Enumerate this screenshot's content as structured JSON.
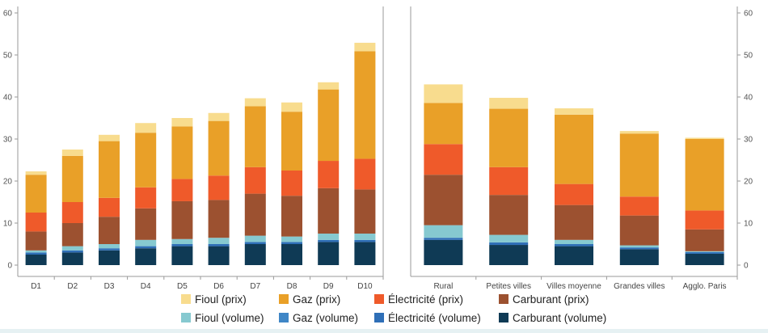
{
  "chart_data": [
    {
      "type": "bar",
      "stacked": true,
      "categories": [
        "D1",
        "D2",
        "D3",
        "D4",
        "D5",
        "D6",
        "D7",
        "D8",
        "D9",
        "D10"
      ],
      "ylim": [
        0,
        60
      ],
      "yticks": [
        0,
        10,
        20,
        30,
        40,
        50,
        60
      ],
      "grid": false,
      "series": [
        {
          "name": "Carburant (volume)",
          "color": "#0f3a55",
          "values": [
            2.5,
            3.0,
            3.5,
            4.0,
            4.5,
            4.5,
            5.0,
            5.0,
            5.5,
            5.5
          ]
        },
        {
          "name": "Électricité (volume)",
          "color": "#2f6fb7",
          "values": [
            0.5,
            0.5,
            0.5,
            0.5,
            0.5,
            0.5,
            0.5,
            0.5,
            0.5,
            0.5
          ]
        },
        {
          "name": "Gaz (volume)",
          "color": "#3f86c6",
          "values": [
            0.0,
            0.0,
            0.0,
            0.0,
            0.0,
            0.0,
            0.0,
            0.0,
            0.0,
            0.0
          ]
        },
        {
          "name": "Fioul (volume)",
          "color": "#86c9d0",
          "values": [
            0.5,
            1.0,
            1.0,
            1.5,
            1.2,
            1.5,
            1.5,
            1.3,
            1.5,
            1.5
          ]
        },
        {
          "name": "Carburant (prix)",
          "color": "#9c5130",
          "values": [
            4.5,
            5.5,
            6.5,
            7.5,
            9.0,
            9.0,
            10.0,
            9.7,
            10.8,
            10.5
          ]
        },
        {
          "name": "Électricité (prix)",
          "color": "#ef5a2a",
          "values": [
            4.5,
            5.0,
            4.5,
            5.0,
            5.3,
            5.8,
            6.3,
            6.0,
            6.5,
            7.3
          ]
        },
        {
          "name": "Gaz (prix)",
          "color": "#e9a028",
          "values": [
            9.0,
            11.0,
            13.5,
            13.0,
            12.5,
            13.0,
            14.5,
            14.0,
            17.0,
            25.6
          ]
        },
        {
          "name": "Fioul (prix)",
          "color": "#f8dc8e",
          "values": [
            0.8,
            1.5,
            1.5,
            2.3,
            2.0,
            1.9,
            1.9,
            2.2,
            1.7,
            2.0
          ]
        }
      ]
    },
    {
      "type": "bar",
      "stacked": true,
      "categories": [
        "Rural",
        "Petites villes",
        "Villes moyenne",
        "Grandes villes",
        "Agglo. Paris"
      ],
      "ylim": [
        0,
        60
      ],
      "yticks": [
        0,
        10,
        20,
        30,
        40,
        50,
        60
      ],
      "grid": false,
      "series": [
        {
          "name": "Carburant (volume)",
          "color": "#0f3a55",
          "values": [
            6.0,
            4.8,
            4.5,
            3.8,
            2.7
          ]
        },
        {
          "name": "Électricité (volume)",
          "color": "#2f6fb7",
          "values": [
            0.5,
            0.6,
            0.5,
            0.4,
            0.4
          ]
        },
        {
          "name": "Gaz (volume)",
          "color": "#3f86c6",
          "values": [
            0.0,
            0.0,
            0.0,
            0.0,
            0.0
          ]
        },
        {
          "name": "Fioul (volume)",
          "color": "#86c9d0",
          "values": [
            3.0,
            1.8,
            1.0,
            0.5,
            0.2
          ]
        },
        {
          "name": "Carburant (prix)",
          "color": "#9c5130",
          "values": [
            12.0,
            9.5,
            8.3,
            7.1,
            5.2
          ]
        },
        {
          "name": "Électricité (prix)",
          "color": "#ef5a2a",
          "values": [
            7.3,
            6.6,
            5.0,
            4.5,
            4.5
          ]
        },
        {
          "name": "Gaz (prix)",
          "color": "#e9a028",
          "values": [
            9.8,
            13.9,
            16.5,
            15.0,
            17.0
          ]
        },
        {
          "name": "Fioul (prix)",
          "color": "#f8dc8e",
          "values": [
            4.4,
            2.6,
            1.5,
            0.6,
            0.3
          ]
        }
      ]
    }
  ],
  "legend": {
    "position": "bottom",
    "rows": [
      [
        "Fioul (prix)",
        "Gaz (prix)",
        "Électricité (prix)",
        "Carburant (prix)"
      ],
      [
        "Fioul (volume)",
        "Gaz (volume)",
        "Électricité (volume)",
        "Carburant (volume)"
      ]
    ]
  }
}
